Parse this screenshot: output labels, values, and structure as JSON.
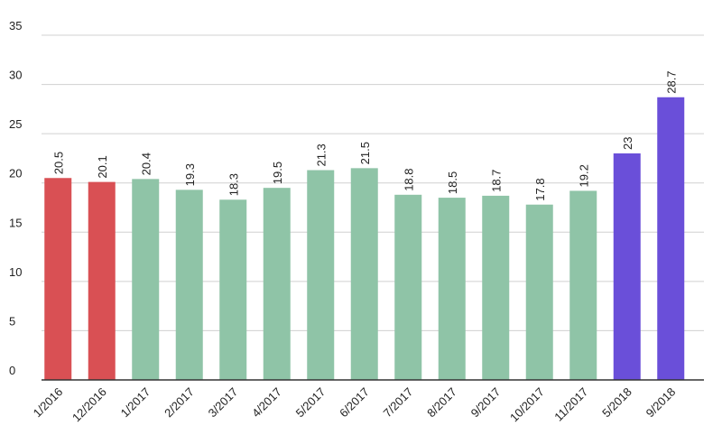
{
  "chart_data": {
    "type": "bar",
    "categories": [
      "1/2016",
      "12/2016",
      "1/2017",
      "2/2017",
      "3/2017",
      "4/2017",
      "5/2017",
      "6/2017",
      "7/2017",
      "8/2017",
      "9/2017",
      "10/2017",
      "11/2017",
      "5/2018",
      "9/2018"
    ],
    "values": [
      20.5,
      20.1,
      20.4,
      19.3,
      18.3,
      19.5,
      21.3,
      21.5,
      18.8,
      18.5,
      18.7,
      17.8,
      19.2,
      23,
      28.7
    ],
    "colors": [
      "#d95054",
      "#d95054",
      "#8fc4a7",
      "#8fc4a7",
      "#8fc4a7",
      "#8fc4a7",
      "#8fc4a7",
      "#8fc4a7",
      "#8fc4a7",
      "#8fc4a7",
      "#8fc4a7",
      "#8fc4a7",
      "#8fc4a7",
      "#6a4fd9",
      "#6a4fd9"
    ],
    "ylim": [
      0,
      35
    ],
    "yticks": [
      0,
      5,
      10,
      15,
      20,
      25,
      30,
      35
    ],
    "grid": true
  }
}
